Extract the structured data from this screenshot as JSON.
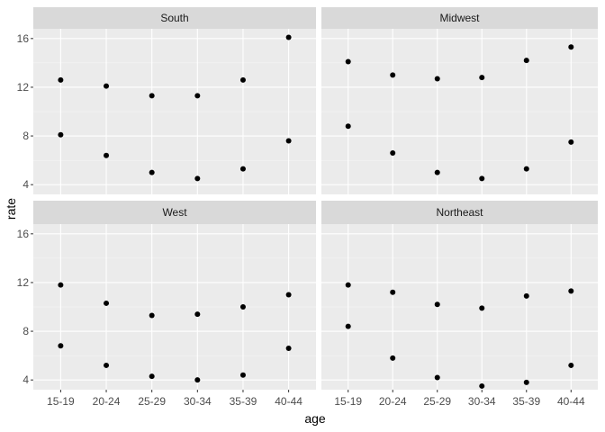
{
  "chart_data": {
    "type": "scatter",
    "facet_layout": "2x2",
    "xlabel": "age",
    "ylabel": "rate",
    "categories": [
      "15-19",
      "20-24",
      "25-29",
      "30-34",
      "35-39",
      "40-44"
    ],
    "ylim": [
      3.2,
      16.8
    ],
    "yticks": [
      4,
      8,
      12,
      16
    ],
    "grid": true,
    "legend": "none",
    "colors": {
      "panel_bg": "#ebebeb",
      "strip_bg": "#d9d9d9",
      "grid_major": "#ffffff",
      "point": "#000000",
      "tick": "#333333"
    },
    "panels": [
      {
        "title": "South",
        "series": [
          {
            "values": [
              12.6,
              12.1,
              11.3,
              11.3,
              12.6,
              16.1
            ]
          },
          {
            "values": [
              8.1,
              6.4,
              5.0,
              4.5,
              5.3,
              7.6
            ]
          }
        ]
      },
      {
        "title": "Midwest",
        "series": [
          {
            "values": [
              14.1,
              13.0,
              12.7,
              12.8,
              14.2,
              15.3
            ]
          },
          {
            "values": [
              8.8,
              6.6,
              5.0,
              4.5,
              5.3,
              7.5
            ]
          }
        ]
      },
      {
        "title": "West",
        "series": [
          {
            "values": [
              11.8,
              10.3,
              9.3,
              9.4,
              10.0,
              11.0
            ]
          },
          {
            "values": [
              6.8,
              5.2,
              4.3,
              4.0,
              4.4,
              6.6
            ]
          }
        ]
      },
      {
        "title": "Northeast",
        "series": [
          {
            "values": [
              11.8,
              11.2,
              10.2,
              9.9,
              10.9,
              11.3
            ]
          },
          {
            "values": [
              8.4,
              5.8,
              4.2,
              3.5,
              3.8,
              5.2
            ]
          }
        ]
      }
    ]
  }
}
